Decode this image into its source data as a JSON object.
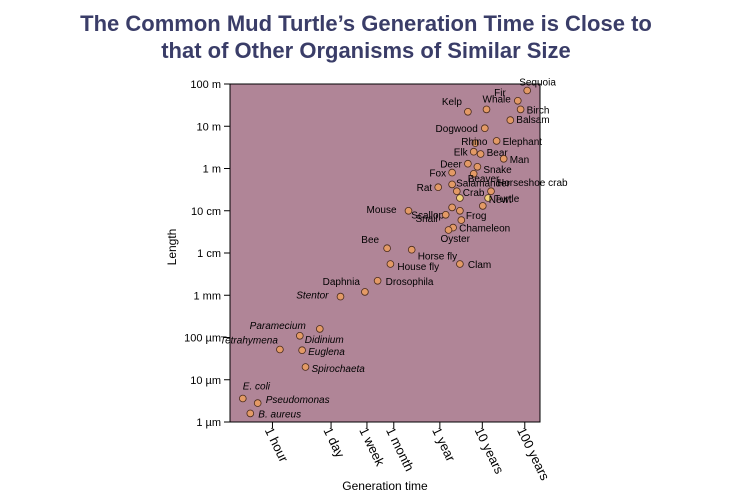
{
  "chart_data": {
    "type": "scatter",
    "title": [
      "The Common Mud Turtle’s Generation Time is Close to",
      "that of Other Organisms of Similar Size"
    ],
    "xlabel": "Generation time",
    "ylabel": "Length",
    "x_scale": "log",
    "y_scale": "log",
    "x_unit": "hours",
    "y_unit": "meters",
    "xlim": [
      0.1,
      2000000
    ],
    "ylim": [
      1e-06,
      100
    ],
    "x_ticks": [
      {
        "label": "1 hour",
        "value": 1
      },
      {
        "label": "1 day",
        "value": 24
      },
      {
        "label": "1 week",
        "value": 168
      },
      {
        "label": "1 month",
        "value": 720
      },
      {
        "label": "1 year",
        "value": 8760
      },
      {
        "label": "10 years",
        "value": 87600
      },
      {
        "label": "100 years",
        "value": 876000
      }
    ],
    "y_ticks": [
      {
        "label": "100 m",
        "value": 100
      },
      {
        "label": "10 m",
        "value": 10
      },
      {
        "label": "1 m",
        "value": 1
      },
      {
        "label": "10 cm",
        "value": 0.1
      },
      {
        "label": "1 cm",
        "value": 0.01
      },
      {
        "label": "1 mm",
        "value": 0.001
      },
      {
        "label": "100 µm",
        "value": 0.0001
      },
      {
        "label": "10 µm",
        "value": 1e-05
      },
      {
        "label": "1 µm",
        "value": 1e-06
      }
    ],
    "points": [
      {
        "name": "Sequoia",
        "x": 1000000,
        "y": 70
      },
      {
        "name": "Fir",
        "x": 600000,
        "y": 40
      },
      {
        "name": "Birch",
        "x": 700000,
        "y": 25
      },
      {
        "name": "Balsam",
        "x": 400000,
        "y": 14
      },
      {
        "name": "Kelp",
        "x": 40000,
        "y": 22
      },
      {
        "name": "Whale",
        "x": 110000,
        "y": 25
      },
      {
        "name": "Dogwood",
        "x": 100000,
        "y": 9
      },
      {
        "name": "Rhino",
        "x": 60000,
        "y": 4
      },
      {
        "name": "Elephant",
        "x": 190000,
        "y": 4.5
      },
      {
        "name": "Elk",
        "x": 55000,
        "y": 2.5
      },
      {
        "name": "Bear",
        "x": 80000,
        "y": 2.2
      },
      {
        "name": "Man",
        "x": 280000,
        "y": 1.7
      },
      {
        "name": "Deer",
        "x": 40000,
        "y": 1.3
      },
      {
        "name": "Snake",
        "x": 67000,
        "y": 1.1
      },
      {
        "name": "Fox",
        "x": 17000,
        "y": 0.8
      },
      {
        "name": "Beaver",
        "x": 55000,
        "y": 0.75
      },
      {
        "name": "Salamander",
        "x": 17000,
        "y": 0.42
      },
      {
        "name": "Rat",
        "x": 8000,
        "y": 0.36
      },
      {
        "name": "Crab",
        "x": 22000,
        "y": 0.29
      },
      {
        "name": "Horseshoe crab",
        "x": 140000,
        "y": 0.29
      },
      {
        "name": "Turtle",
        "x": 26000,
        "y": 0.2
      },
      {
        "name": "Turtle",
        "x": 120000,
        "y": 0.2
      },
      {
        "name": "Newt",
        "x": 90000,
        "y": 0.13
      },
      {
        "name": "Mouse",
        "x": 1600,
        "y": 0.1
      },
      {
        "name": "Scallop",
        "x": 17000,
        "y": 0.12
      },
      {
        "name": "Frog",
        "x": 26000,
        "y": 0.1
      },
      {
        "name": "Snail",
        "x": 12000,
        "y": 0.08
      },
      {
        "name": "Snail",
        "x": 28000,
        "y": 0.06
      },
      {
        "name": "Chameleon",
        "x": 18000,
        "y": 0.04
      },
      {
        "name": "Oyster",
        "x": 14000,
        "y": 0.035
      },
      {
        "name": "Bee",
        "x": 500,
        "y": 0.013
      },
      {
        "name": "Horse fly",
        "x": 1900,
        "y": 0.012
      },
      {
        "name": "House fly",
        "x": 600,
        "y": 0.0055
      },
      {
        "name": "Clam",
        "x": 26000,
        "y": 0.0055
      },
      {
        "name": "Drosophila",
        "x": 300,
        "y": 0.0022
      },
      {
        "name": "Daphnia",
        "x": 150,
        "y": 0.0012
      },
      {
        "name": "Stentor",
        "x": 40,
        "y": 0.00093
      },
      {
        "name": "Paramecium",
        "x": 13,
        "y": 0.00016
      },
      {
        "name": "Didinium",
        "x": 4.4,
        "y": 0.00011
      },
      {
        "name": "Tetrahymena",
        "x": 1.5,
        "y": 5.2e-05
      },
      {
        "name": "Euglena",
        "x": 5,
        "y": 5e-05
      },
      {
        "name": "Spirochaeta",
        "x": 6,
        "y": 2e-05
      },
      {
        "name": "E. coli",
        "x": 0.2,
        "y": 3.6e-06
      },
      {
        "name": "Pseudomonas",
        "x": 0.45,
        "y": 2.8e-06
      },
      {
        "name": "B. aureus",
        "x": 0.3,
        "y": 1.6e-06
      }
    ]
  }
}
